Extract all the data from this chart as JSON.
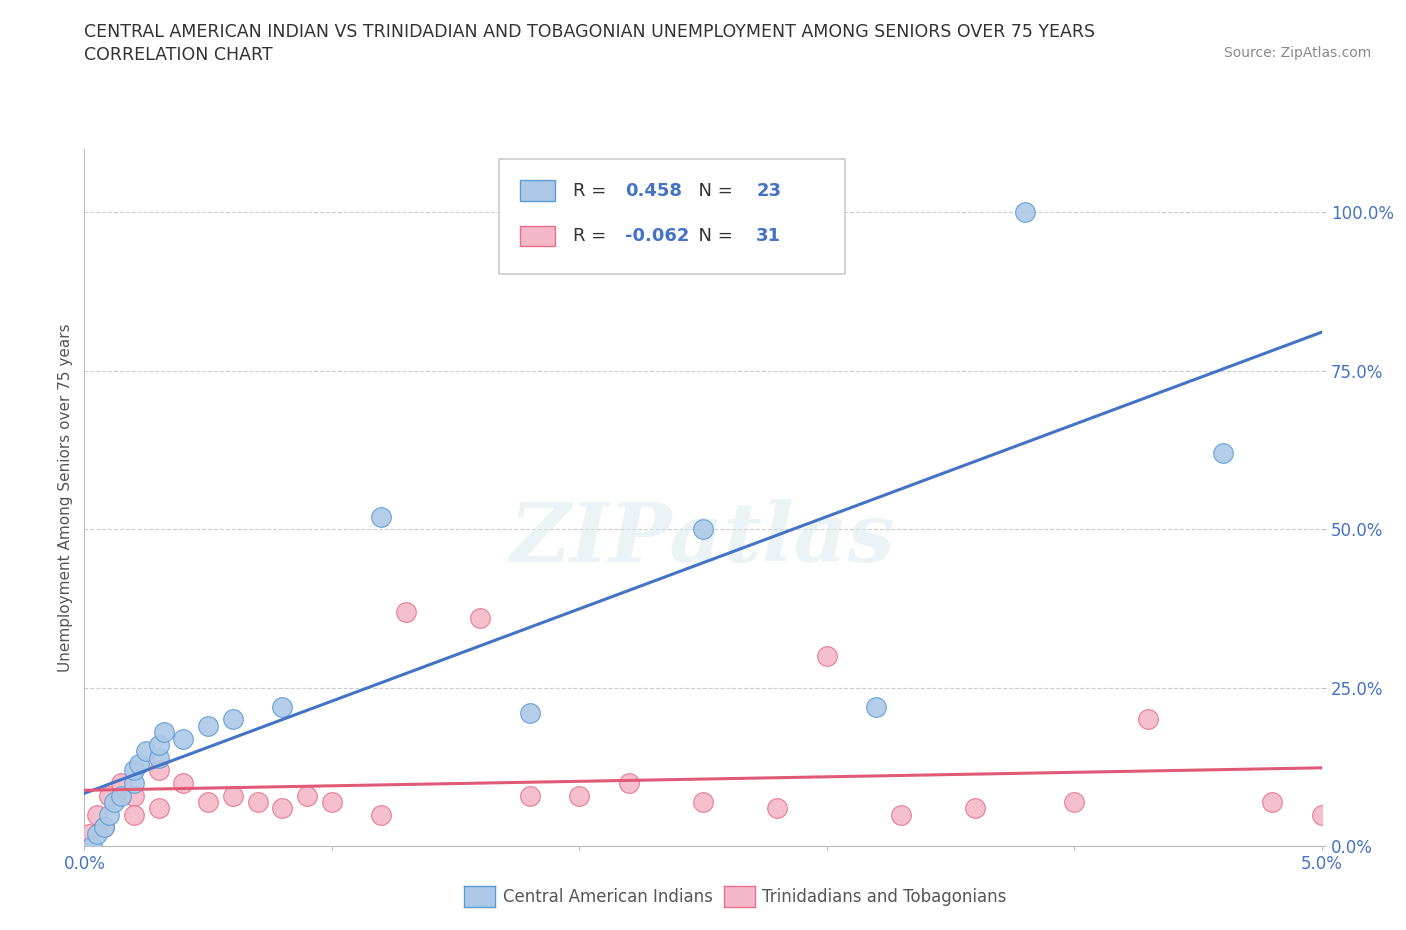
{
  "title_line1": "CENTRAL AMERICAN INDIAN VS TRINIDADIAN AND TOBAGONIAN UNEMPLOYMENT AMONG SENIORS OVER 75 YEARS",
  "title_line2": "CORRELATION CHART",
  "source": "Source: ZipAtlas.com",
  "ylabel": "Unemployment Among Seniors over 75 years",
  "xlim": [
    0.0,
    0.05
  ],
  "ylim": [
    0.0,
    1.1
  ],
  "yticks": [
    0.0,
    0.25,
    0.5,
    0.75,
    1.0
  ],
  "ytick_labels": [
    "0.0%",
    "25.0%",
    "50.0%",
    "75.0%",
    "100.0%"
  ],
  "xticks": [
    0.0,
    0.01,
    0.02,
    0.03,
    0.04,
    0.05
  ],
  "xtick_labels": [
    "0.0%",
    "",
    "",
    "",
    "",
    "5.0%"
  ],
  "blue_R": 0.458,
  "blue_N": 23,
  "pink_R": -0.062,
  "pink_N": 31,
  "blue_color": "#adc8e6",
  "pink_color": "#f5b8c8",
  "blue_edge_color": "#5b9bd5",
  "pink_edge_color": "#e8708a",
  "blue_line_color": "#4472c4",
  "pink_line_color": "#e05a78",
  "watermark": "ZIPatlas",
  "legend_label_blue": "Central American Indians",
  "legend_label_pink": "Trinidadians and Tobagonians",
  "blue_points_x": [
    0.0003,
    0.0005,
    0.0008,
    0.001,
    0.0012,
    0.0015,
    0.002,
    0.002,
    0.0022,
    0.0025,
    0.003,
    0.003,
    0.0032,
    0.004,
    0.005,
    0.006,
    0.008,
    0.012,
    0.018,
    0.025,
    0.032,
    0.038,
    0.046
  ],
  "blue_points_y": [
    0.0,
    0.02,
    0.03,
    0.05,
    0.07,
    0.08,
    0.1,
    0.12,
    0.13,
    0.15,
    0.14,
    0.16,
    0.18,
    0.17,
    0.19,
    0.2,
    0.22,
    0.52,
    0.21,
    0.5,
    0.22,
    1.0,
    0.62
  ],
  "pink_points_x": [
    0.0002,
    0.0005,
    0.0008,
    0.001,
    0.0015,
    0.002,
    0.002,
    0.003,
    0.003,
    0.004,
    0.005,
    0.006,
    0.007,
    0.008,
    0.009,
    0.01,
    0.012,
    0.013,
    0.016,
    0.018,
    0.02,
    0.022,
    0.025,
    0.028,
    0.03,
    0.033,
    0.036,
    0.04,
    0.043,
    0.048,
    0.05
  ],
  "pink_points_y": [
    0.02,
    0.05,
    0.03,
    0.08,
    0.1,
    0.08,
    0.05,
    0.12,
    0.06,
    0.1,
    0.07,
    0.08,
    0.07,
    0.06,
    0.08,
    0.07,
    0.05,
    0.37,
    0.36,
    0.08,
    0.08,
    0.1,
    0.07,
    0.06,
    0.3,
    0.05,
    0.06,
    0.07,
    0.2,
    0.07,
    0.05
  ]
}
